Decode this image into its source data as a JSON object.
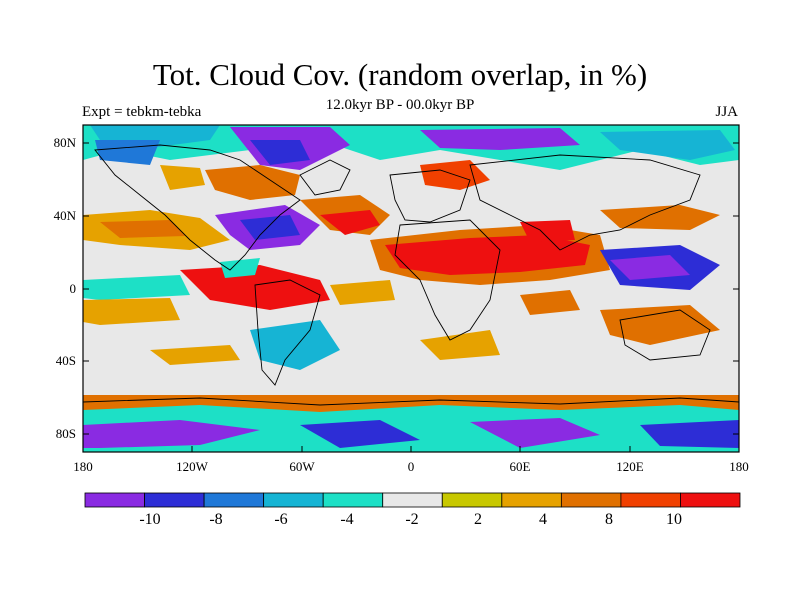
{
  "title": "Tot. Cloud Cov. (random overlap, in %)",
  "subtitle": "12.0kyr BP - 00.0kyr BP",
  "left_label": "Expt = tebkm-tebka",
  "right_label": "JJA",
  "map": {
    "projection": "cylindrical-equidistant",
    "lon_range": [
      -180,
      180
    ],
    "lat_range": [
      -90,
      90
    ],
    "x_ticks": [
      "180",
      "120W",
      "60W",
      "0",
      "60E",
      "120E",
      "180"
    ],
    "y_ticks": [
      "80N",
      "40N",
      "0",
      "40S",
      "80S"
    ],
    "background_class_color": "#e8e8e8"
  },
  "colorbar": {
    "colors": [
      "#8a2be2",
      "#2d2dd6",
      "#1f78d8",
      "#16b4d4",
      "#1de0c6",
      "#e8e8e8",
      "#c8c800",
      "#e6a200",
      "#e07000",
      "#f04000",
      "#ee1010"
    ],
    "labels": [
      "-10",
      "-8",
      "-6",
      "-4",
      "-2",
      "2",
      "4",
      "8",
      "10"
    ]
  }
}
